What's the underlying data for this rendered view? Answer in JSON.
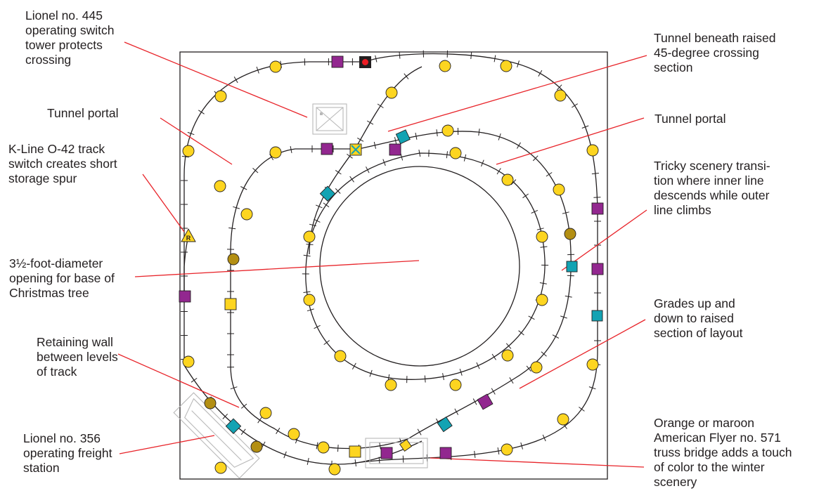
{
  "colors": {
    "frame": "#231f20",
    "track": "#231f20",
    "leader": "#e8242a",
    "yellow_marker": "#fdd520",
    "olive_marker": "#b38f13",
    "purple_marker": "#92278f",
    "teal_marker": "#13a3b3",
    "signal_light": "#ed1c24",
    "ghost_outline": "#b9b9b9"
  },
  "callouts": {
    "switch_tower": "Lionel no. 445\noperating switch\ntower protects\ncrossing",
    "tunnel_portal_left": "Tunnel portal",
    "kline_switch": "K-Line O-42 track\nswitch creates short\nstorage spur",
    "tree_opening": "3½-foot-diameter\nopening for base of\nChristmas tree",
    "retaining_wall": "Retaining wall\nbetween levels\nof track",
    "freight_station": "Lionel no. 356\noperating freight\nstation",
    "tunnel_beneath": "Tunnel beneath raised\n45-degree crossing\nsection",
    "tunnel_portal_right": "Tunnel portal",
    "scenery_transition": "Tricky scenery transi-\ntion where inner line\ndescends while outer\nline climbs",
    "grades": "Grades up and\ndown to raised\nsection of layout",
    "truss_bridge": "Orange or maroon\nAmerican Flyer no. 571\ntruss bridge adds a touch\nof color to the winter\nscenery"
  },
  "symbols": {
    "switch_label": "R"
  }
}
